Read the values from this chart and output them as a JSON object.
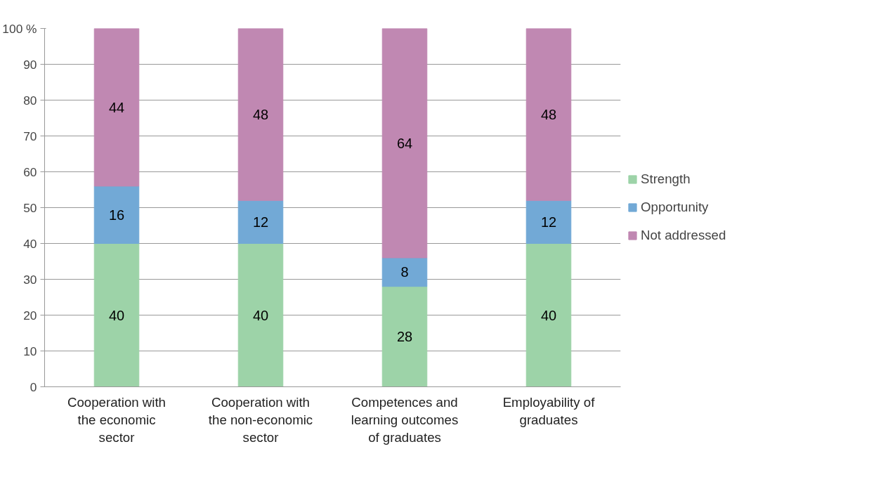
{
  "chart_data": {
    "type": "bar",
    "stacked": true,
    "data_labels": true,
    "legend": "right",
    "grid": "y",
    "categories": [
      "Cooperation with the economic sector",
      "Cooperation with the non-economic sector",
      "Competences and learning outcomes of graduates",
      "Employability of graduates"
    ],
    "series": [
      {
        "name": "Strength",
        "color": "#9dd3a8",
        "values": [
          40,
          40,
          28,
          40
        ]
      },
      {
        "name": "Opportunity",
        "color": "#72a9d6",
        "values": [
          16,
          12,
          8,
          12
        ]
      },
      {
        "name": "Not addressed",
        "color": "#c088b2",
        "values": [
          44,
          48,
          64,
          48
        ]
      }
    ],
    "ylim": [
      0,
      100
    ],
    "yticks": [
      0,
      10,
      20,
      30,
      40,
      50,
      60,
      70,
      80,
      90,
      {
        "value": 100,
        "label": "100 %"
      }
    ]
  }
}
